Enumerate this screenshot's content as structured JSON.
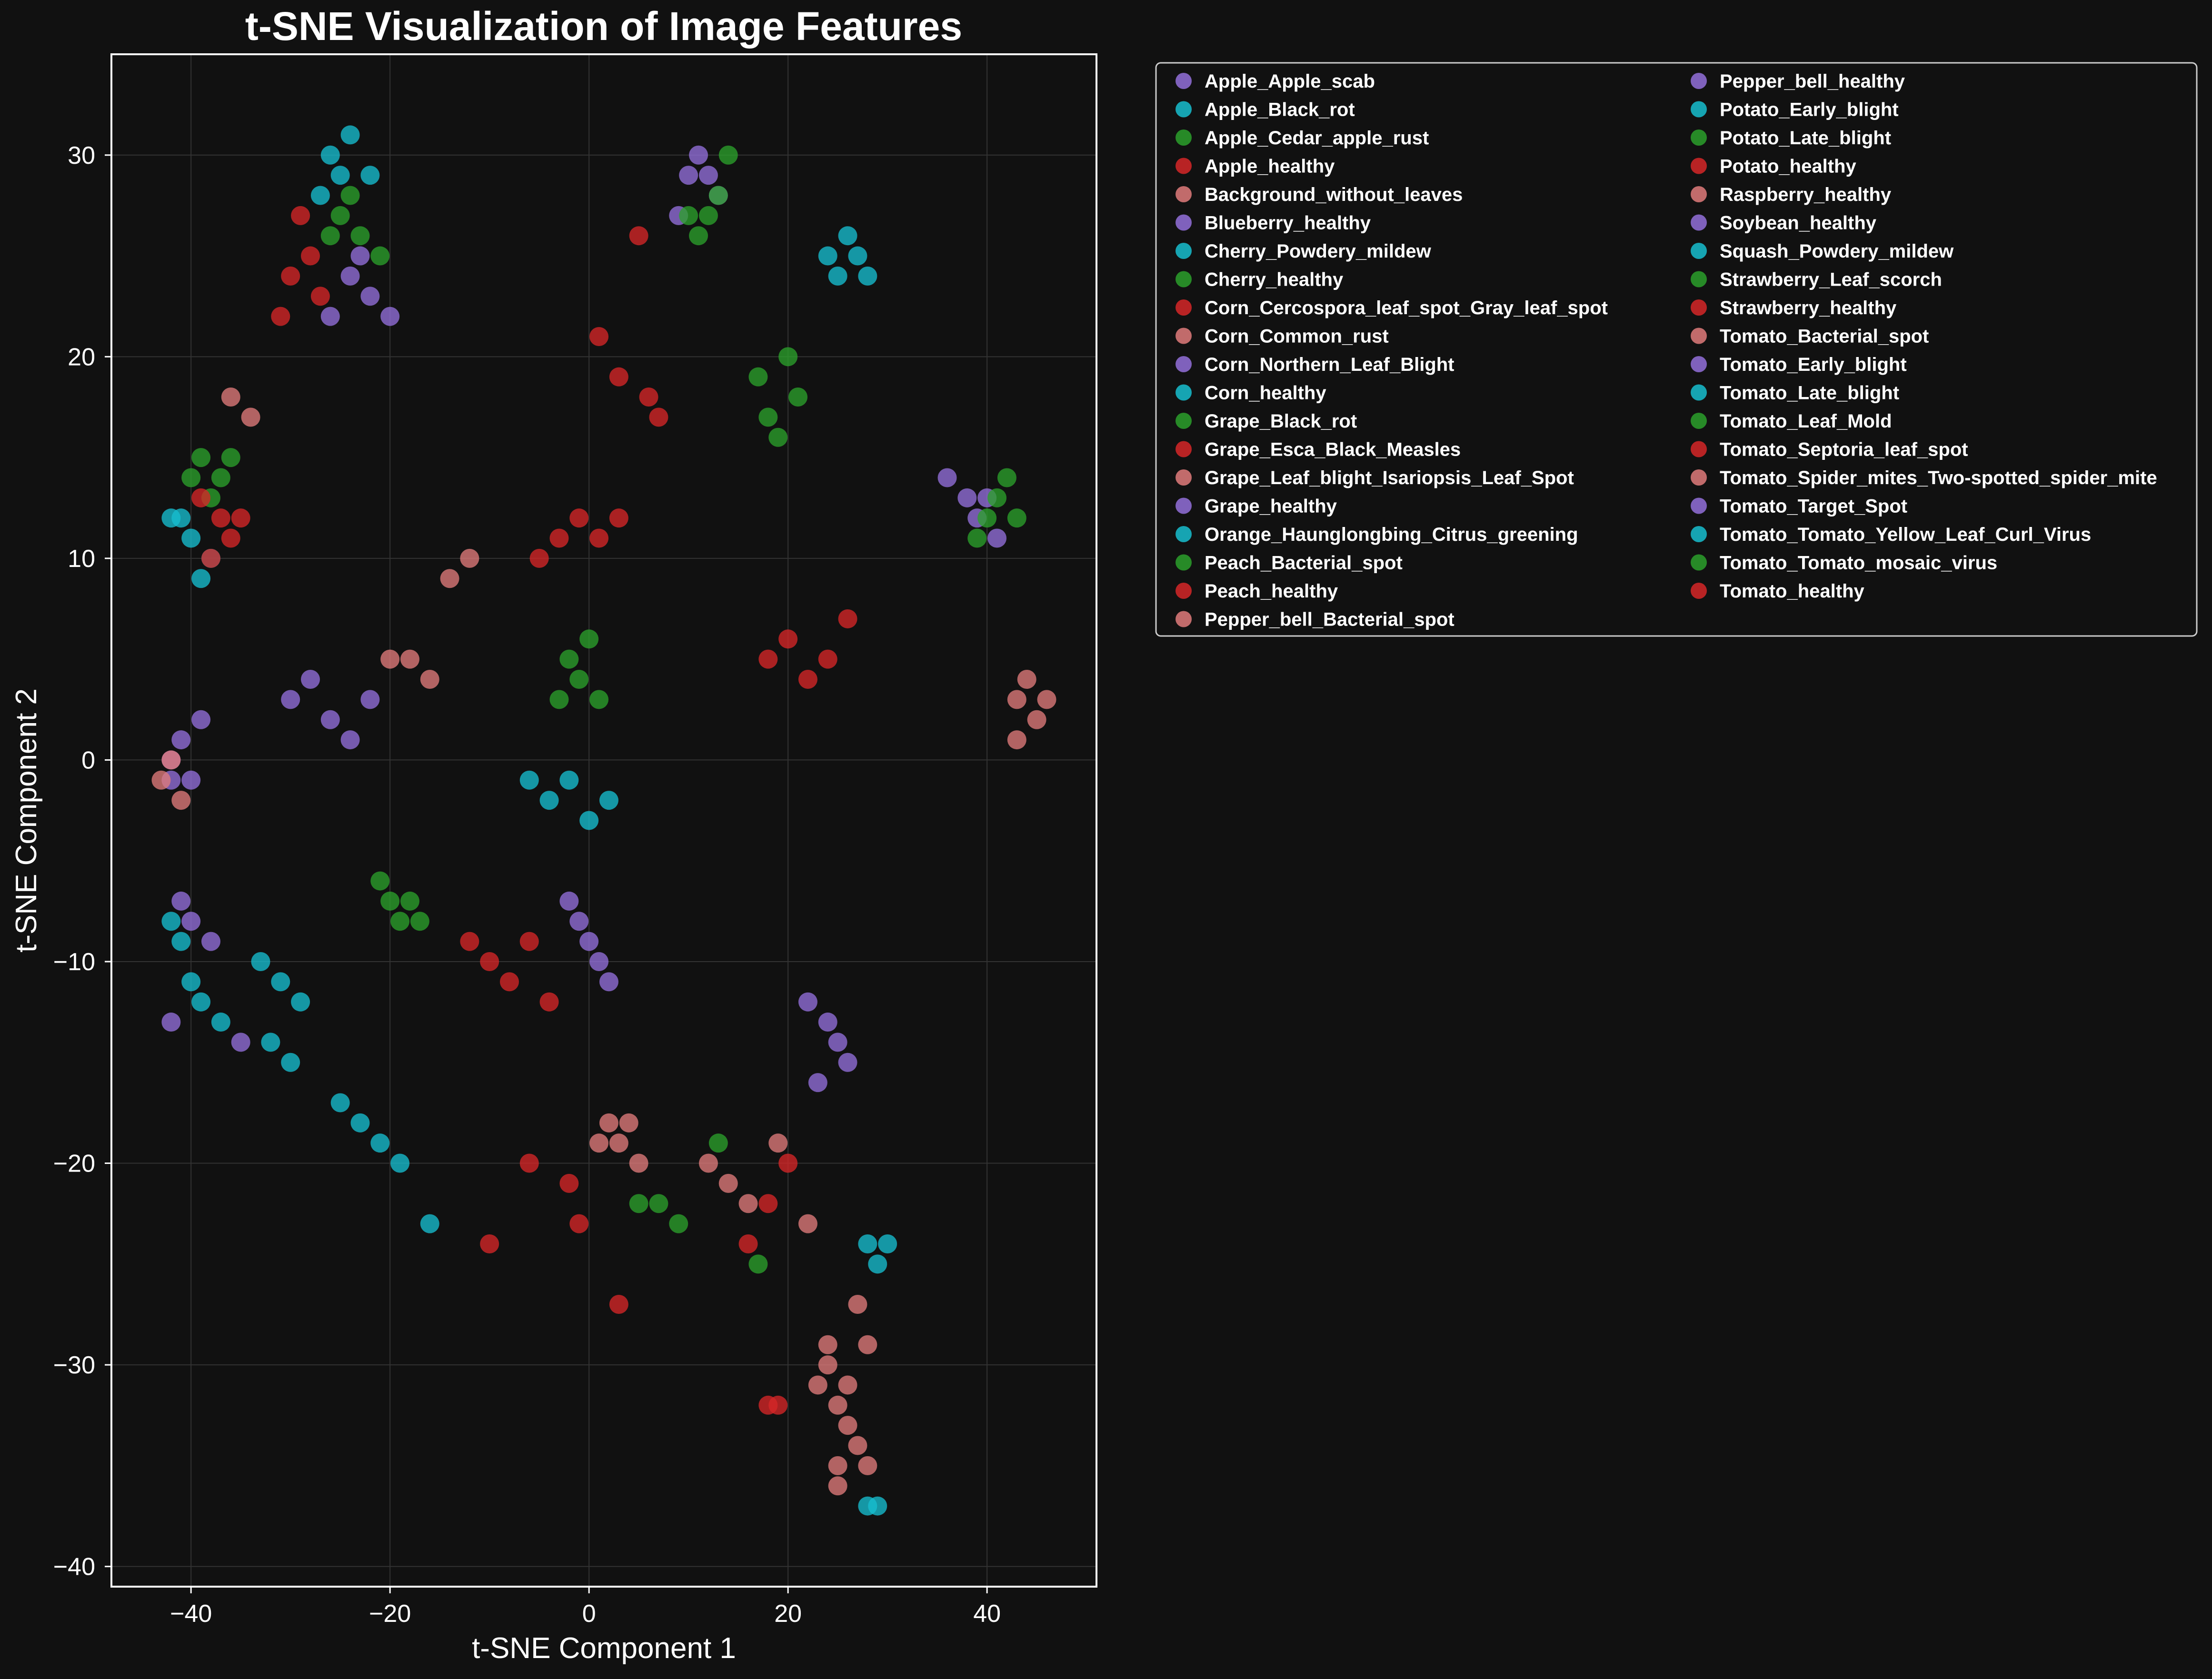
{
  "chart_data": {
    "type": "scatter",
    "title": "t-SNE Visualization of Image Features",
    "xlabel": "t-SNE Component 1",
    "ylabel": "t-SNE Component 2",
    "xlim": [
      -48,
      51
    ],
    "ylim": [
      -41,
      35
    ],
    "xticks": [
      -40,
      -20,
      0,
      20,
      40
    ],
    "yticks": [
      -40,
      -30,
      -20,
      -10,
      0,
      10,
      20,
      30
    ],
    "grid": true,
    "legend_position": "outside-right-top",
    "legend_columns": 2,
    "series": [
      {
        "name": "Apple_Apple_scab",
        "color": "#9370DB",
        "points": [
          [
            -24,
            24
          ],
          [
            -22,
            23
          ],
          [
            -20,
            22
          ],
          [
            -26,
            22
          ],
          [
            -23,
            25
          ]
        ]
      },
      {
        "name": "Apple_Black_rot",
        "color": "#17BECF",
        "points": [
          [
            -26,
            30
          ],
          [
            -24,
            31
          ],
          [
            -22,
            29
          ],
          [
            -27,
            28
          ],
          [
            -25,
            29
          ]
        ]
      },
      {
        "name": "Apple_Cedar_apple_rust",
        "color": "#2CA02C",
        "points": [
          [
            -25,
            27
          ],
          [
            -23,
            26
          ],
          [
            -21,
            25
          ],
          [
            -26,
            26
          ],
          [
            -24,
            28
          ]
        ]
      },
      {
        "name": "Apple_healthy",
        "color": "#D62728",
        "points": [
          [
            -29,
            27
          ],
          [
            -28,
            25
          ],
          [
            -30,
            24
          ],
          [
            -27,
            23
          ],
          [
            -31,
            22
          ]
        ]
      },
      {
        "name": "Background_without_leaves",
        "color": "#E07B7B",
        "points": [
          [
            24,
            -30
          ],
          [
            25,
            -32
          ],
          [
            26,
            -33
          ],
          [
            27,
            -34
          ],
          [
            28,
            -35
          ],
          [
            23,
            -31
          ],
          [
            25,
            -35
          ]
        ]
      },
      {
        "name": "Blueberry_healthy",
        "color": "#9370DB",
        "points": [
          [
            -41,
            1
          ],
          [
            -42,
            0
          ],
          [
            -40,
            -1
          ],
          [
            -39,
            2
          ],
          [
            -42,
            -1
          ]
        ]
      },
      {
        "name": "Cherry_Powdery_mildew",
        "color": "#17BECF",
        "points": [
          [
            -41,
            12
          ],
          [
            -40,
            11
          ],
          [
            -38,
            10
          ],
          [
            -42,
            12
          ],
          [
            -39,
            9
          ]
        ]
      },
      {
        "name": "Cherry_healthy",
        "color": "#2CA02C",
        "points": [
          [
            -39,
            15
          ],
          [
            -37,
            14
          ],
          [
            -38,
            13
          ],
          [
            -36,
            15
          ],
          [
            -40,
            14
          ]
        ]
      },
      {
        "name": "Corn_Cercospora_leaf_spot_Gray_leaf_spot",
        "color": "#D62728",
        "points": [
          [
            -39,
            13
          ],
          [
            -37,
            12
          ],
          [
            -36,
            11
          ],
          [
            -38,
            10
          ],
          [
            -35,
            12
          ]
        ]
      },
      {
        "name": "Corn_Common_rust",
        "color": "#E07B7B",
        "points": [
          [
            -43,
            -1
          ],
          [
            -41,
            -2
          ],
          [
            -42,
            0
          ],
          [
            -36,
            18
          ],
          [
            -34,
            17
          ]
        ]
      },
      {
        "name": "Corn_Northern_Leaf_Blight",
        "color": "#9370DB",
        "points": [
          [
            -41,
            -7
          ],
          [
            -40,
            -8
          ],
          [
            -38,
            -9
          ],
          [
            -42,
            -13
          ],
          [
            -35,
            -14
          ]
        ]
      },
      {
        "name": "Corn_healthy",
        "color": "#17BECF",
        "points": [
          [
            -42,
            -8
          ],
          [
            -41,
            -9
          ],
          [
            -40,
            -11
          ],
          [
            -39,
            -12
          ],
          [
            -37,
            -13
          ]
        ]
      },
      {
        "name": "Grape_Black_rot",
        "color": "#2CA02C",
        "points": [
          [
            -20,
            -7
          ],
          [
            -19,
            -8
          ],
          [
            -18,
            -7
          ],
          [
            -21,
            -6
          ],
          [
            -17,
            -8
          ]
        ]
      },
      {
        "name": "Grape_Esca_Black_Measles",
        "color": "#D62728",
        "points": [
          [
            -12,
            -9
          ],
          [
            -10,
            -10
          ],
          [
            -8,
            -11
          ],
          [
            -6,
            -9
          ],
          [
            -4,
            -12
          ]
        ]
      },
      {
        "name": "Grape_Leaf_blight_Isariopsis_Leaf_Spot",
        "color": "#E07B7B",
        "points": [
          [
            2,
            -18
          ],
          [
            3,
            -19
          ],
          [
            4,
            -18
          ],
          [
            5,
            -20
          ],
          [
            1,
            -19
          ]
        ]
      },
      {
        "name": "Grape_healthy",
        "color": "#9370DB",
        "points": [
          [
            -30,
            3
          ],
          [
            -28,
            4
          ],
          [
            -26,
            2
          ],
          [
            -24,
            1
          ],
          [
            -22,
            3
          ]
        ]
      },
      {
        "name": "Orange_Haunglongbing_Citrus_greening",
        "color": "#17BECF",
        "points": [
          [
            -25,
            -17
          ],
          [
            -23,
            -18
          ],
          [
            -21,
            -19
          ],
          [
            -19,
            -20
          ],
          [
            -16,
            -23
          ]
        ]
      },
      {
        "name": "Peach_Bacterial_spot",
        "color": "#2CA02C",
        "points": [
          [
            -2,
            5
          ],
          [
            -1,
            4
          ],
          [
            0,
            6
          ],
          [
            1,
            3
          ],
          [
            -3,
            3
          ]
        ]
      },
      {
        "name": "Peach_healthy",
        "color": "#D62728",
        "points": [
          [
            -5,
            10
          ],
          [
            -3,
            11
          ],
          [
            -1,
            12
          ],
          [
            1,
            11
          ],
          [
            3,
            12
          ]
        ]
      },
      {
        "name": "Pepper_bell_Bacterial_spot",
        "color": "#E07B7B",
        "points": [
          [
            -20,
            5
          ],
          [
            -18,
            5
          ],
          [
            -16,
            4
          ],
          [
            -14,
            9
          ],
          [
            -12,
            10
          ]
        ]
      },
      {
        "name": "Pepper_bell_healthy",
        "color": "#9370DB",
        "points": [
          [
            10,
            29
          ],
          [
            11,
            30
          ],
          [
            12,
            29
          ],
          [
            13,
            28
          ],
          [
            9,
            27
          ]
        ]
      },
      {
        "name": "Potato_Early_blight",
        "color": "#17BECF",
        "points": [
          [
            24,
            25
          ],
          [
            26,
            26
          ],
          [
            27,
            25
          ],
          [
            28,
            24
          ],
          [
            25,
            24
          ]
        ]
      },
      {
        "name": "Potato_Late_blight",
        "color": "#2CA02C",
        "points": [
          [
            10,
            27
          ],
          [
            12,
            27
          ],
          [
            13,
            28
          ],
          [
            14,
            30
          ],
          [
            11,
            26
          ]
        ]
      },
      {
        "name": "Potato_healthy",
        "color": "#D62728",
        "points": [
          [
            1,
            21
          ],
          [
            3,
            19
          ],
          [
            6,
            18
          ],
          [
            7,
            17
          ],
          [
            5,
            26
          ]
        ]
      },
      {
        "name": "Raspberry_healthy",
        "color": "#E07B7B",
        "points": [
          [
            43,
            3
          ],
          [
            44,
            4
          ],
          [
            45,
            2
          ],
          [
            46,
            3
          ],
          [
            43,
            1
          ]
        ]
      },
      {
        "name": "Soybean_healthy",
        "color": "#9370DB",
        "points": [
          [
            36,
            14
          ],
          [
            38,
            13
          ],
          [
            39,
            12
          ],
          [
            40,
            13
          ],
          [
            41,
            11
          ]
        ]
      },
      {
        "name": "Squash_Powdery_mildew",
        "color": "#17BECF",
        "points": [
          [
            28,
            -24
          ],
          [
            29,
            -25
          ],
          [
            28,
            -37
          ],
          [
            29,
            -37
          ],
          [
            30,
            -24
          ]
        ]
      },
      {
        "name": "Strawberry_Leaf_scorch",
        "color": "#2CA02C",
        "points": [
          [
            17,
            19
          ],
          [
            18,
            17
          ],
          [
            19,
            16
          ],
          [
            20,
            20
          ],
          [
            21,
            18
          ]
        ]
      },
      {
        "name": "Strawberry_healthy",
        "color": "#D62728",
        "points": [
          [
            18,
            -32
          ],
          [
            19,
            -32
          ],
          [
            20,
            -20
          ],
          [
            18,
            -22
          ],
          [
            16,
            -24
          ]
        ]
      },
      {
        "name": "Tomato_Bacterial_spot",
        "color": "#E07B7B",
        "points": [
          [
            24,
            -29
          ],
          [
            26,
            -31
          ],
          [
            27,
            -27
          ],
          [
            28,
            -29
          ],
          [
            25,
            -36
          ]
        ]
      },
      {
        "name": "Tomato_Early_blight",
        "color": "#9370DB",
        "points": [
          [
            22,
            -12
          ],
          [
            24,
            -13
          ],
          [
            25,
            -14
          ],
          [
            26,
            -15
          ],
          [
            23,
            -16
          ]
        ]
      },
      {
        "name": "Tomato_Late_blight",
        "color": "#17BECF",
        "points": [
          [
            -33,
            -10
          ],
          [
            -31,
            -11
          ],
          [
            -29,
            -12
          ],
          [
            -32,
            -14
          ],
          [
            -30,
            -15
          ]
        ]
      },
      {
        "name": "Tomato_Leaf_Mold",
        "color": "#2CA02C",
        "points": [
          [
            5,
            -22
          ],
          [
            7,
            -22
          ],
          [
            9,
            -23
          ],
          [
            13,
            -19
          ],
          [
            17,
            -25
          ]
        ]
      },
      {
        "name": "Tomato_Septoria_leaf_spot",
        "color": "#D62728",
        "points": [
          [
            -10,
            -24
          ],
          [
            -6,
            -20
          ],
          [
            -2,
            -21
          ],
          [
            -1,
            -23
          ],
          [
            3,
            -27
          ]
        ]
      },
      {
        "name": "Tomato_Spider_mites_Two-spotted_spider_mite",
        "color": "#E07B7B",
        "points": [
          [
            12,
            -20
          ],
          [
            14,
            -21
          ],
          [
            16,
            -22
          ],
          [
            19,
            -19
          ],
          [
            22,
            -23
          ]
        ]
      },
      {
        "name": "Tomato_Target_Spot",
        "color": "#9370DB",
        "points": [
          [
            -2,
            -7
          ],
          [
            -1,
            -8
          ],
          [
            0,
            -9
          ],
          [
            1,
            -10
          ],
          [
            2,
            -11
          ]
        ]
      },
      {
        "name": "Tomato_Tomato_Yellow_Leaf_Curl_Virus",
        "color": "#17BECF",
        "points": [
          [
            -6,
            -1
          ],
          [
            -4,
            -2
          ],
          [
            -2,
            -1
          ],
          [
            0,
            -3
          ],
          [
            2,
            -2
          ]
        ]
      },
      {
        "name": "Tomato_Tomato_mosaic_virus",
        "color": "#2CA02C",
        "points": [
          [
            40,
            12
          ],
          [
            41,
            13
          ],
          [
            42,
            14
          ],
          [
            43,
            12
          ],
          [
            39,
            11
          ]
        ]
      },
      {
        "name": "Tomato_healthy",
        "color": "#D62728",
        "points": [
          [
            18,
            5
          ],
          [
            20,
            6
          ],
          [
            22,
            4
          ],
          [
            24,
            5
          ],
          [
            26,
            7
          ]
        ]
      }
    ]
  }
}
